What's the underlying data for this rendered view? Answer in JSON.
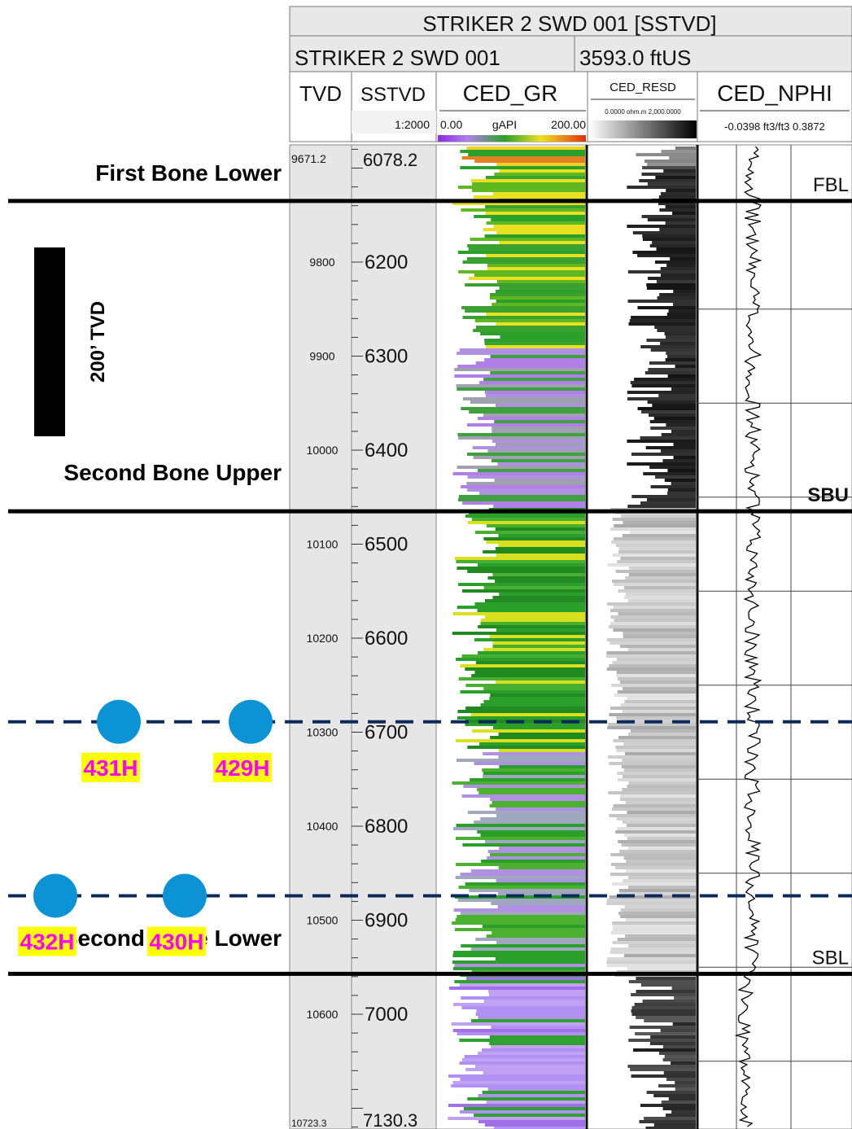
{
  "header": {
    "well_title": "STRIKER 2 SWD 001 [SSTVD]",
    "well_name": "STRIKER 2 SWD 001",
    "elevation": "3593.0 ftUS",
    "track_tvd": "TVD",
    "track_sstvd": "SSTVD",
    "scale": "1:2000",
    "gr_curve": "CED_GR",
    "gr_min": "0.00",
    "gr_unit": "gAPI",
    "gr_max": "200.00",
    "resd_curve": "CED_RESD",
    "resd_scale": "0.0000 ohm.m 2,000.0000",
    "nphi_curve": "CED_NPHI",
    "nphi_scale": "-0.0398 ft3/ft3 0.3872"
  },
  "depth_track": {
    "tvd_top": "9671.2",
    "sstvd_top": "6078.2",
    "tvd_bottom": "10723.3",
    "sstvd_bottom": "7130.3",
    "ticks": [
      {
        "tvd": "9800",
        "sstvd": "6200",
        "value": 6200
      },
      {
        "tvd": "9900",
        "sstvd": "6300",
        "value": 6300
      },
      {
        "tvd": "10000",
        "sstvd": "6400",
        "value": 6400
      },
      {
        "tvd": "10100",
        "sstvd": "6500",
        "value": 6500
      },
      {
        "tvd": "10200",
        "sstvd": "6600",
        "value": 6600
      },
      {
        "tvd": "10300",
        "sstvd": "6700",
        "value": 6700
      },
      {
        "tvd": "10400",
        "sstvd": "6800",
        "value": 6800
      },
      {
        "tvd": "10500",
        "sstvd": "6900",
        "value": 6900
      },
      {
        "tvd": "10600",
        "sstvd": "7000",
        "value": 7000
      }
    ]
  },
  "formation_tops": [
    {
      "name": "First Bone Lower",
      "marker": "FBL",
      "sstvd": 6135
    },
    {
      "name": "Second Bone Upper",
      "marker": "SBU",
      "sstvd": 6465
    },
    {
      "name": "Second Bone Lower",
      "marker": "SBL",
      "sstvd": 6957
    }
  ],
  "scale_bar": {
    "label": "200’ TVD"
  },
  "landing_zones": [
    {
      "sstvd": 6689,
      "wells": [
        "431H",
        "429H"
      ]
    },
    {
      "sstvd": 6874,
      "wells": [
        "432H",
        "430H"
      ]
    }
  ],
  "colors": {
    "target_line": "#0b2a5a",
    "well_marker": "#0b93d5",
    "well_label_text": "#ff00ff",
    "well_label_bg": "#ffff00",
    "gr_low": "#1e9a1e",
    "gr_mid": "#f0e020",
    "gr_high": "#b080e8"
  }
}
